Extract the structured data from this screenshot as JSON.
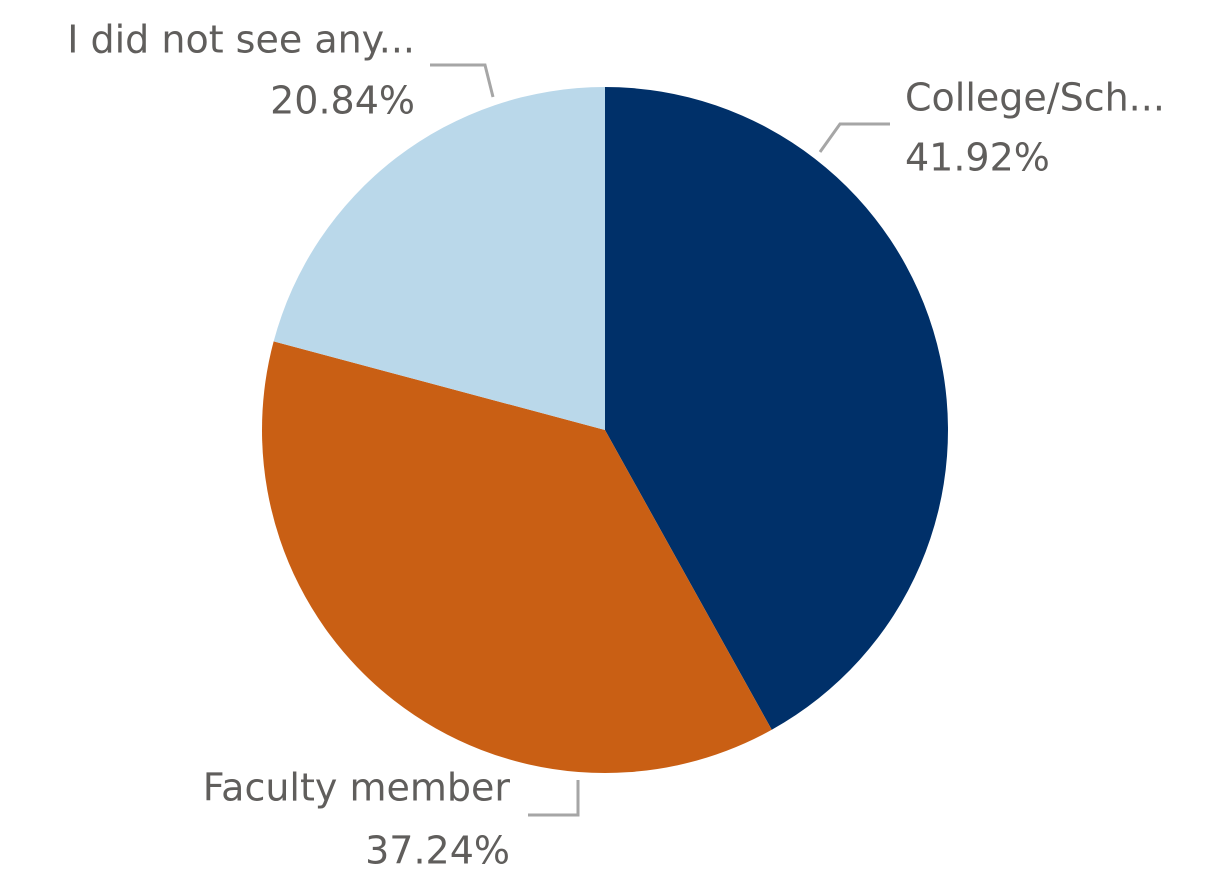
{
  "chart_data": {
    "type": "pie",
    "categories": [
      "College/Sch...",
      "Faculty member",
      "I did not see any..."
    ],
    "values": [
      41.92,
      37.24,
      20.84
    ],
    "value_labels": [
      "41.92%",
      "37.24%",
      "20.84%"
    ],
    "colors": [
      "#003069",
      "#c95f14",
      "#bad8ea"
    ]
  }
}
